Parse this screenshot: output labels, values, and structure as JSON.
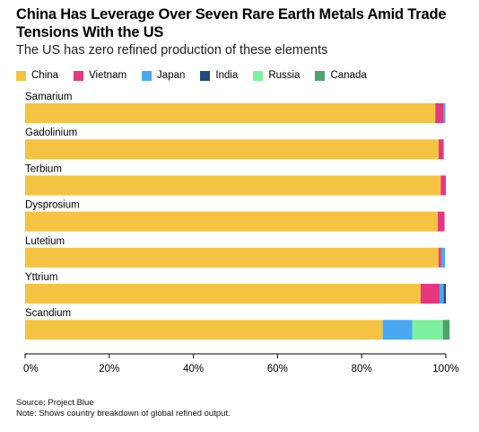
{
  "title": "China Has Leverage Over Seven Rare Earth Metals Amid Trade Tensions With the US",
  "subtitle": "The US has zero refined production of these elements",
  "source": "Source: Project Blue",
  "note": "Note: Shows country breakdown of global refined output.",
  "chart_data": {
    "type": "bar",
    "orientation": "horizontal",
    "stacked": true,
    "categories": [
      "Samarium",
      "Gadolinium",
      "Terbium",
      "Dysprosium",
      "Lutetium",
      "Yttrium",
      "Scandium"
    ],
    "series": [
      {
        "name": "China",
        "color": "#f5c342",
        "values": [
          97.5,
          98.3,
          98.8,
          98.1,
          98.3,
          94.0,
          85.0
        ]
      },
      {
        "name": "Vietnam",
        "color": "#e6377e",
        "values": [
          2.0,
          1.2,
          1.2,
          1.6,
          0.6,
          4.5,
          0
        ]
      },
      {
        "name": "Japan",
        "color": "#4aa8f2",
        "values": [
          0.4,
          0,
          0,
          0,
          0.9,
          1.0,
          7.0
        ]
      },
      {
        "name": "India",
        "color": "#1f4e79",
        "values": [
          0,
          0,
          0,
          0,
          0,
          0.5,
          0
        ]
      },
      {
        "name": "Russia",
        "color": "#7ef0a0",
        "values": [
          0,
          0,
          0,
          0,
          0,
          0,
          7.3
        ]
      },
      {
        "name": "Canada",
        "color": "#4ea26d",
        "values": [
          0,
          0,
          0,
          0,
          0,
          0,
          1.6
        ]
      }
    ],
    "xlim": [
      0,
      100
    ],
    "xticks": [
      "0%",
      "20%",
      "40%",
      "60%",
      "80%",
      "100%"
    ],
    "legend_position": "top-left",
    "grid": false
  }
}
